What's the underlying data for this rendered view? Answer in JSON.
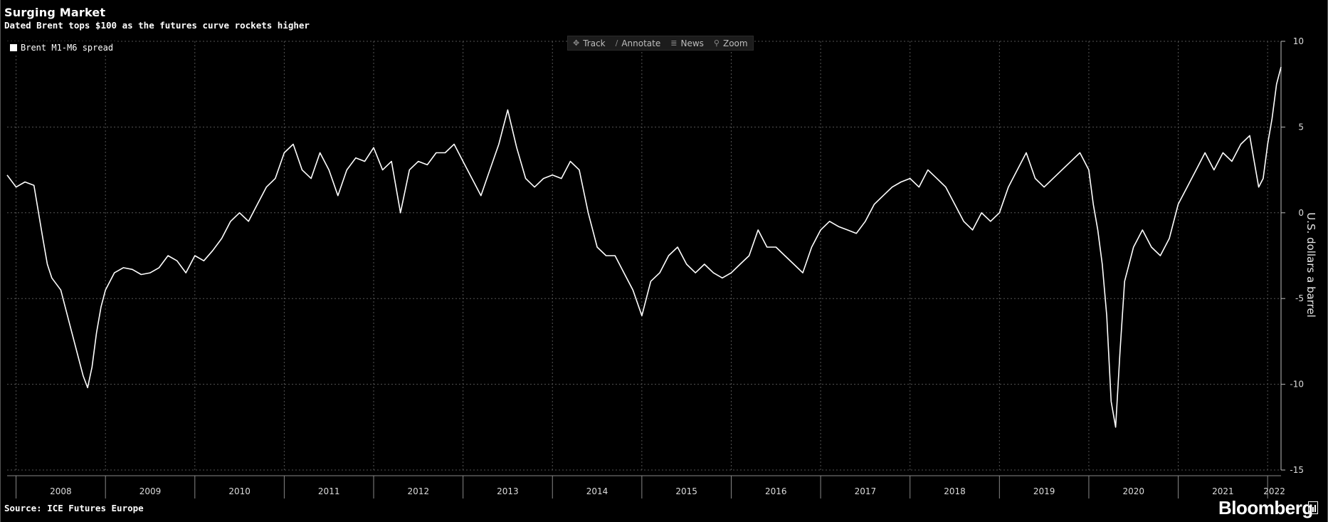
{
  "header": {
    "title": "Surging Market",
    "subtitle": "Dated Brent tops $100 as the futures curve rockets higher"
  },
  "toolbar": {
    "items": [
      {
        "label": "Track",
        "icon": "crosshair-icon"
      },
      {
        "label": "Annotate",
        "icon": "pencil-icon"
      },
      {
        "label": "News",
        "icon": "news-icon"
      },
      {
        "label": "Zoom",
        "icon": "magnifier-icon"
      }
    ]
  },
  "footer": {
    "source": "Source: ICE Futures Europe",
    "brand": "Bloomberg"
  },
  "chart_data": {
    "type": "line",
    "title": "Surging Market",
    "subtitle": "Dated Brent tops $100 as the futures curve rockets higher",
    "xlabel": "",
    "ylabel": "U.S. dollars a barrel",
    "xlim": [
      2007.9,
      2022.15
    ],
    "ylim": [
      -15,
      10
    ],
    "yticks": [
      10,
      5,
      0,
      -5,
      -10,
      -15
    ],
    "year_labels": [
      "2008",
      "2009",
      "2010",
      "2011",
      "2012",
      "2013",
      "2014",
      "2015",
      "2016",
      "2017",
      "2018",
      "2019",
      "2020",
      "2021",
      "2022"
    ],
    "grid": true,
    "legend": "top-left",
    "colors": {
      "background": "#000000",
      "line": "#ffffff",
      "grid": "#555555"
    },
    "series": [
      {
        "name": "Brent M1-M6 spread",
        "x": [
          2007.9,
          2008.0,
          2008.1,
          2008.2,
          2008.3,
          2008.35,
          2008.4,
          2008.5,
          2008.6,
          2008.7,
          2008.75,
          2008.8,
          2008.85,
          2008.9,
          2008.95,
          2009.0,
          2009.1,
          2009.2,
          2009.3,
          2009.4,
          2009.5,
          2009.6,
          2009.7,
          2009.8,
          2009.9,
          2010.0,
          2010.1,
          2010.2,
          2010.3,
          2010.4,
          2010.5,
          2010.6,
          2010.7,
          2010.8,
          2010.9,
          2011.0,
          2011.1,
          2011.2,
          2011.3,
          2011.4,
          2011.5,
          2011.6,
          2011.7,
          2011.8,
          2011.9,
          2012.0,
          2012.1,
          2012.2,
          2012.3,
          2012.4,
          2012.5,
          2012.6,
          2012.7,
          2012.8,
          2012.9,
          2013.0,
          2013.1,
          2013.2,
          2013.3,
          2013.4,
          2013.5,
          2013.6,
          2013.7,
          2013.8,
          2013.9,
          2014.0,
          2014.1,
          2014.2,
          2014.3,
          2014.4,
          2014.5,
          2014.6,
          2014.7,
          2014.8,
          2014.9,
          2015.0,
          2015.1,
          2015.2,
          2015.3,
          2015.4,
          2015.5,
          2015.6,
          2015.7,
          2015.8,
          2015.9,
          2016.0,
          2016.1,
          2016.2,
          2016.3,
          2016.4,
          2016.5,
          2016.6,
          2016.7,
          2016.8,
          2016.9,
          2017.0,
          2017.1,
          2017.2,
          2017.3,
          2017.4,
          2017.5,
          2017.6,
          2017.7,
          2017.8,
          2017.9,
          2018.0,
          2018.1,
          2018.2,
          2018.3,
          2018.4,
          2018.5,
          2018.6,
          2018.7,
          2018.8,
          2018.9,
          2019.0,
          2019.1,
          2019.2,
          2019.3,
          2019.4,
          2019.5,
          2019.6,
          2019.7,
          2019.8,
          2019.9,
          2020.0,
          2020.05,
          2020.1,
          2020.15,
          2020.2,
          2020.25,
          2020.3,
          2020.35,
          2020.4,
          2020.5,
          2020.6,
          2020.7,
          2020.8,
          2020.9,
          2021.0,
          2021.1,
          2021.2,
          2021.3,
          2021.4,
          2021.5,
          2021.6,
          2021.7,
          2021.8,
          2021.85,
          2021.9,
          2021.95,
          2022.0,
          2022.05,
          2022.1,
          2022.15
        ],
        "values": [
          2.2,
          1.5,
          1.8,
          1.6,
          -1.5,
          -3.0,
          -3.8,
          -4.5,
          -6.5,
          -8.5,
          -9.5,
          -10.2,
          -9.0,
          -7.0,
          -5.5,
          -4.5,
          -3.5,
          -3.2,
          -3.3,
          -3.6,
          -3.5,
          -3.2,
          -2.5,
          -2.8,
          -3.5,
          -2.5,
          -2.8,
          -2.2,
          -1.5,
          -0.5,
          0.0,
          -0.5,
          0.5,
          1.5,
          2.0,
          3.5,
          4.0,
          2.5,
          2.0,
          3.5,
          2.5,
          1.0,
          2.5,
          3.2,
          3.0,
          3.8,
          2.5,
          3.0,
          0.0,
          2.5,
          3.0,
          2.8,
          3.5,
          3.5,
          4.0,
          3.0,
          2.0,
          1.0,
          2.5,
          4.0,
          6.0,
          3.8,
          2.0,
          1.5,
          2.0,
          2.2,
          2.0,
          3.0,
          2.5,
          0.0,
          -2.0,
          -2.5,
          -2.5,
          -3.5,
          -4.5,
          -6.0,
          -4.0,
          -3.5,
          -2.5,
          -2.0,
          -3.0,
          -3.5,
          -3.0,
          -3.5,
          -3.8,
          -3.5,
          -3.0,
          -2.5,
          -1.0,
          -2.0,
          -2.0,
          -2.5,
          -3.0,
          -3.5,
          -2.0,
          -1.0,
          -0.5,
          -0.8,
          -1.0,
          -1.2,
          -0.5,
          0.5,
          1.0,
          1.5,
          1.8,
          2.0,
          1.5,
          2.5,
          2.0,
          1.5,
          0.5,
          -0.5,
          -1.0,
          0.0,
          -0.5,
          0.0,
          1.5,
          2.5,
          3.5,
          2.0,
          1.5,
          2.0,
          2.5,
          3.0,
          3.5,
          2.5,
          0.5,
          -1.0,
          -3.0,
          -6.0,
          -11.0,
          -12.5,
          -8.0,
          -4.0,
          -2.0,
          -1.0,
          -2.0,
          -2.5,
          -1.5,
          0.5,
          1.5,
          2.5,
          3.5,
          2.5,
          3.5,
          3.0,
          4.0,
          4.5,
          3.0,
          1.5,
          2.0,
          4.0,
          5.5,
          7.5,
          8.5
        ]
      }
    ]
  }
}
